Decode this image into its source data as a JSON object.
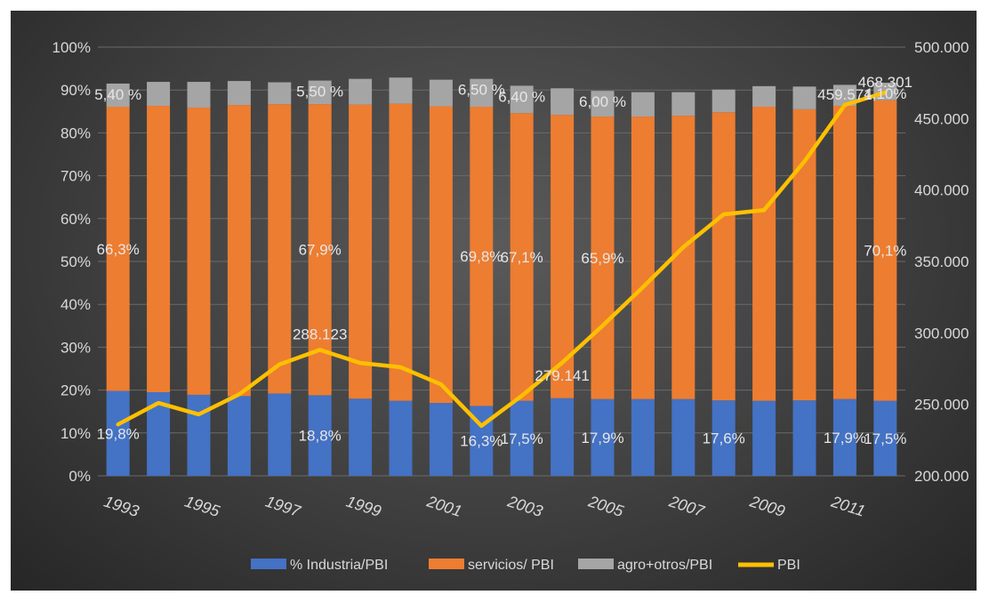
{
  "chart_data": {
    "type": "bar",
    "stacked": true,
    "categories": [
      "1993",
      "1994",
      "1995",
      "1996",
      "1997",
      "1998",
      "1999",
      "2000",
      "2001",
      "2002",
      "2003",
      "2004",
      "2005",
      "2006",
      "2007",
      "2008",
      "2009",
      "2010",
      "2011",
      "2012"
    ],
    "x_tick_labels": [
      "1993",
      "1995",
      "1997",
      "1999",
      "2001",
      "2003",
      "2005",
      "2007",
      "2009",
      "2011"
    ],
    "series": [
      {
        "name": "% Industria/PBI",
        "color": "#4472c4",
        "axis": "left",
        "values": [
          19.8,
          19.5,
          18.9,
          18.6,
          19.2,
          18.8,
          18.0,
          17.5,
          17.0,
          16.3,
          17.5,
          18.1,
          17.9,
          17.9,
          17.9,
          17.6,
          17.5,
          17.6,
          17.9,
          17.5
        ]
      },
      {
        "name": "servicios/ PBI",
        "color": "#ed7d31",
        "axis": "left",
        "values": [
          66.3,
          66.8,
          67.0,
          67.9,
          67.5,
          67.9,
          68.6,
          69.3,
          69.2,
          69.8,
          67.1,
          66.1,
          65.9,
          65.9,
          66.1,
          67.2,
          68.6,
          67.9,
          68.4,
          70.1
        ]
      },
      {
        "name": "agro+otros/PBI",
        "color": "#a5a5a5",
        "axis": "left",
        "values": [
          5.4,
          5.6,
          6.0,
          5.6,
          5.1,
          5.5,
          6.0,
          6.1,
          6.2,
          6.5,
          6.4,
          6.2,
          6.0,
          5.7,
          5.5,
          5.3,
          4.8,
          5.3,
          4.9,
          4.1
        ]
      },
      {
        "name": "PBI",
        "color": "#ffc000",
        "type": "line",
        "axis": "right",
        "values": [
          236000,
          251000,
          243000,
          257000,
          278000,
          288123,
          279000,
          276000,
          264000,
          235000,
          256000,
          279141,
          305000,
          332000,
          360000,
          383000,
          386000,
          420000,
          459571,
          468301
        ]
      }
    ],
    "y_left": {
      "ticks": [
        "0%",
        "10%",
        "20%",
        "30%",
        "40%",
        "50%",
        "60%",
        "70%",
        "80%",
        "90%",
        "100%"
      ],
      "ylim": [
        0,
        100
      ]
    },
    "y_right": {
      "ticks": [
        "200.000",
        "250.000",
        "300.000",
        "350.000",
        "400.000",
        "450.000",
        "500.000"
      ],
      "ylim": [
        200000,
        500000
      ]
    },
    "data_labels": [
      {
        "series": 0,
        "index": 0,
        "text": "19,8%"
      },
      {
        "series": 0,
        "index": 5,
        "text": "18,8%"
      },
      {
        "series": 0,
        "index": 9,
        "text": "16,3%"
      },
      {
        "series": 0,
        "index": 10,
        "text": "17,5%"
      },
      {
        "series": 0,
        "index": 12,
        "text": "17,9%"
      },
      {
        "series": 0,
        "index": 15,
        "text": "17,6%"
      },
      {
        "series": 0,
        "index": 18,
        "text": "17,9%"
      },
      {
        "series": 0,
        "index": 19,
        "text": "17,5%"
      },
      {
        "series": 1,
        "index": 0,
        "text": "66,3%"
      },
      {
        "series": 1,
        "index": 5,
        "text": "67,9%"
      },
      {
        "series": 1,
        "index": 9,
        "text": "69,8%"
      },
      {
        "series": 1,
        "index": 10,
        "text": "67,1%"
      },
      {
        "series": 1,
        "index": 12,
        "text": "65,9%"
      },
      {
        "series": 1,
        "index": 19,
        "text": "70,1%"
      },
      {
        "series": 2,
        "index": 0,
        "text": "5,40 %"
      },
      {
        "series": 2,
        "index": 5,
        "text": "5,50 %"
      },
      {
        "series": 2,
        "index": 9,
        "text": "6,50 %"
      },
      {
        "series": 2,
        "index": 10,
        "text": "6,40 %"
      },
      {
        "series": 2,
        "index": 12,
        "text": "6,00 %"
      },
      {
        "series": 2,
        "index": 19,
        "text": "4,10%"
      },
      {
        "series": 3,
        "index": 5,
        "text": "288.123"
      },
      {
        "series": 3,
        "index": 11,
        "text": "279.141"
      },
      {
        "series": 3,
        "index": 18,
        "text": "459.571"
      },
      {
        "series": 3,
        "index": 19,
        "text": "468.301"
      }
    ],
    "legend": {
      "position": "bottom"
    },
    "grid": true
  }
}
